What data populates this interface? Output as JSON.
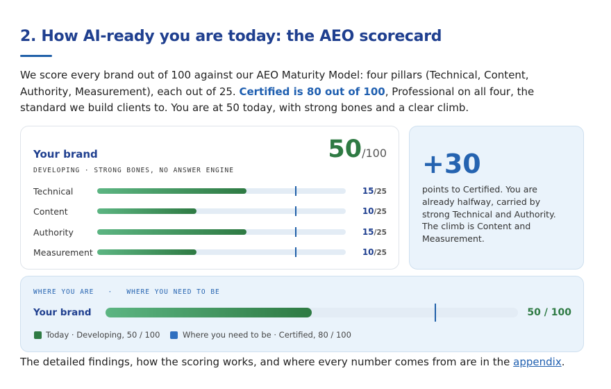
{
  "section": {
    "heading": "2. How AI-ready you are today: the AEO scorecard",
    "intro": {
      "before": "We score every brand out of 100 against our AEO Maturity Model: four pillars (Technical, Content, Authority, Measurement), each out of 25. ",
      "highlight": "Certified is 80 out of 100",
      "after": ", Professional on all four, the standard we build clients to. You are at 50 today, with strong bones and a clear climb."
    },
    "card": {
      "title": "Your brand",
      "score": 50,
      "max_label": "/100",
      "subtitle": "DEVELOPING · STRONG BONES, NO ANSWER ENGINE",
      "separator": "/",
      "pillars": [
        {
          "name": "Technical",
          "score": 15,
          "max": 25,
          "target": 20
        },
        {
          "name": "Content",
          "score": 10,
          "max": 25,
          "target": 20
        },
        {
          "name": "Authority",
          "score": 15,
          "max": 25,
          "target": 20
        },
        {
          "name": "Measurement",
          "score": 10,
          "max": 25,
          "target": 20
        }
      ]
    },
    "gap": {
      "value": "+30",
      "text": "points to Certified. You are already halfway, carried by strong Technical and Authority. The climb is Content and Measurement."
    },
    "progress": {
      "kicker": "WHERE YOU ARE   ·   WHERE YOU NEED TO BE",
      "label": "Your brand",
      "value": 50,
      "target": 80,
      "max": 100,
      "value_label": "50 / 100",
      "legend": [
        "Today · Developing, 50 / 100",
        "Where you need to be · Certified, 80 / 100"
      ]
    },
    "footer": {
      "text": "The detailed findings, how the scoring works, and where every number comes from are in the ",
      "link": "appendix",
      "end": "."
    }
  }
}
